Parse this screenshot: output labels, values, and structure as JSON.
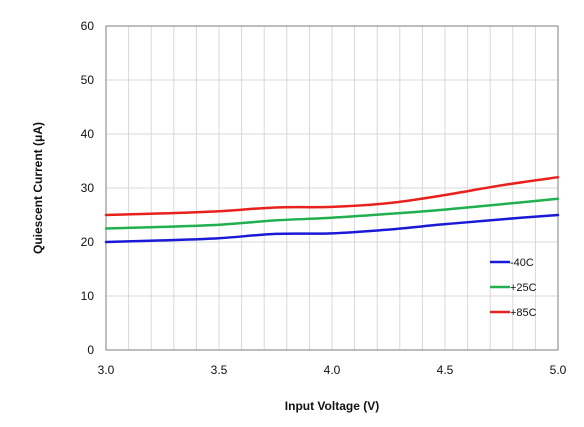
{
  "chart_data": {
    "type": "line",
    "title": "",
    "xlabel": "Input Voltage (V)",
    "ylabel": "Quiescent Current (μA)",
    "xlim": [
      3.0,
      5.0
    ],
    "ylim": [
      0,
      60
    ],
    "x_ticks": [
      3.0,
      3.5,
      4.0,
      4.5,
      5.0
    ],
    "x_tick_labels": [
      "3.0",
      "3.5",
      "4.0",
      "4.5",
      "5.0"
    ],
    "y_ticks": [
      0,
      10,
      20,
      30,
      40,
      50,
      60
    ],
    "y_tick_labels": [
      "0",
      "10",
      "20",
      "30",
      "40",
      "50",
      "60"
    ],
    "x_minor_grid_step": 0.1,
    "grid": true,
    "legend_position": "bottom-right inside plot",
    "series": [
      {
        "name": "-40C",
        "color": "#1a1ad6",
        "x": [
          3.0,
          3.25,
          3.5,
          3.75,
          4.0,
          4.25,
          4.5,
          4.75,
          5.0
        ],
        "y": [
          20.0,
          20.3,
          20.7,
          21.5,
          21.6,
          22.3,
          23.3,
          24.2,
          25.0
        ]
      },
      {
        "name": "+25C",
        "color": "#20b050",
        "x": [
          3.0,
          3.25,
          3.5,
          3.75,
          4.0,
          4.25,
          4.5,
          4.75,
          5.0
        ],
        "y": [
          22.5,
          22.8,
          23.2,
          24.0,
          24.5,
          25.2,
          26.0,
          27.0,
          28.0
        ]
      },
      {
        "name": "+85C",
        "color": "#e8211d",
        "x": [
          3.0,
          3.25,
          3.5,
          3.75,
          4.0,
          4.25,
          4.5,
          4.75,
          5.0
        ],
        "y": [
          25.0,
          25.3,
          25.7,
          26.4,
          26.5,
          27.2,
          28.7,
          30.5,
          32.0
        ]
      }
    ]
  }
}
